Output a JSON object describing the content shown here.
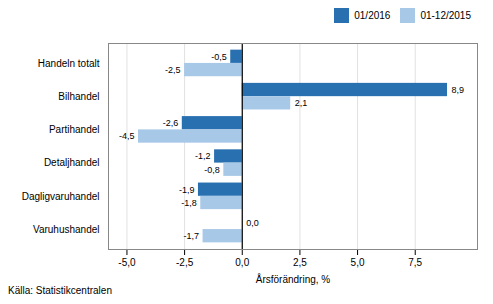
{
  "chart_data": {
    "type": "bar",
    "orientation": "horizontal",
    "categories": [
      "Handeln totalt",
      "Bilhandel",
      "Partihandel",
      "Detaljhandel",
      "Dagligvaruhandel",
      "Varuhushandel"
    ],
    "series": [
      {
        "name": "01/2016",
        "color": "#2970B0",
        "values": [
          -0.5,
          8.9,
          -2.6,
          -1.2,
          -1.9,
          0.0
        ],
        "value_labels": [
          "-0,5",
          "8,9",
          "-2,6",
          "-1,2",
          "-1,9",
          "0,0"
        ]
      },
      {
        "name": "01-12/2015",
        "color": "#A8C8E8",
        "values": [
          -2.5,
          2.1,
          -4.5,
          -0.8,
          -1.8,
          -1.7
        ],
        "value_labels": [
          "-2,5",
          "2,1",
          "-4,5",
          "-0,8",
          "-1,8",
          "-1,7"
        ]
      }
    ],
    "xlabel": "Årsförändring, %",
    "xlim": [
      -5.8,
      10.2
    ],
    "xticks": [
      {
        "value": -5.0,
        "label": "-5,0"
      },
      {
        "value": -2.5,
        "label": "-2,5"
      },
      {
        "value": 0.0,
        "label": "0,0"
      },
      {
        "value": 2.5,
        "label": "2,5"
      },
      {
        "value": 5.0,
        "label": "5,0"
      },
      {
        "value": 7.5,
        "label": "7,5"
      }
    ],
    "grid": true,
    "data_labels": true,
    "legend": "upper right",
    "caption": "Källa: Statistikcentralen"
  }
}
